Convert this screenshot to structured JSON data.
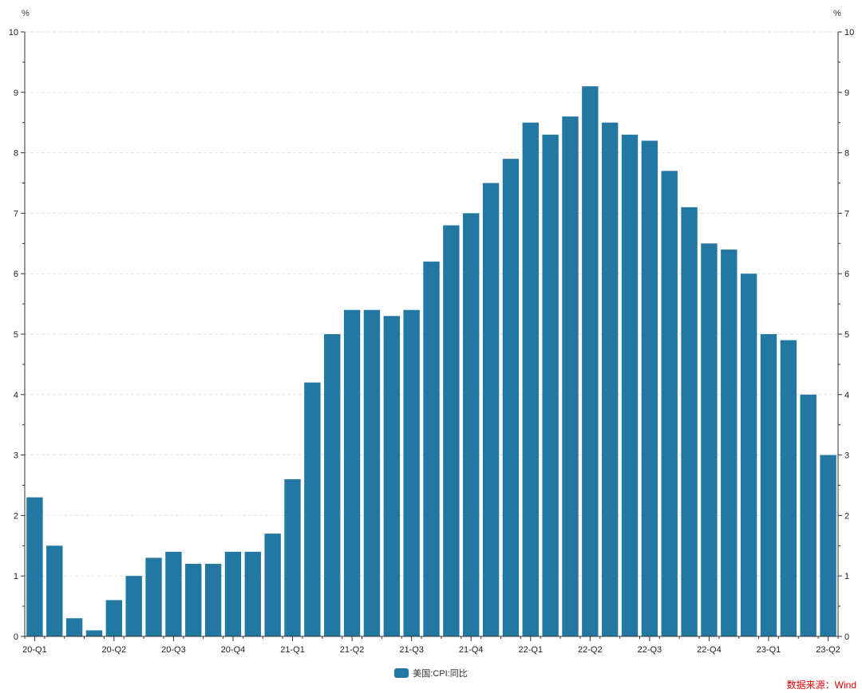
{
  "colors": {
    "bar": "#2277a3",
    "grid": "#e3e3e3",
    "axis": "#333333",
    "source": "#e00000"
  },
  "legend": {
    "label": "美国:CPI:同比"
  },
  "source": {
    "text": "数据来源：Wind"
  },
  "chart_data": {
    "type": "bar",
    "y_unit_left": "%",
    "y_unit_right": "%",
    "ylim": [
      0,
      10
    ],
    "yticks": [
      0,
      1,
      2,
      3,
      4,
      5,
      6,
      7,
      8,
      9,
      10
    ],
    "grid": true,
    "legend_position": "bottom-center",
    "series": [
      {
        "name": "美国:CPI:同比",
        "values": [
          2.3,
          1.5,
          0.3,
          0.1,
          0.6,
          1.0,
          1.3,
          1.4,
          1.2,
          1.2,
          1.4,
          1.4,
          1.7,
          2.6,
          4.2,
          5.0,
          5.4,
          5.4,
          5.3,
          5.4,
          6.2,
          6.8,
          7.0,
          7.5,
          7.9,
          8.5,
          8.3,
          8.6,
          9.1,
          8.5,
          8.3,
          8.2,
          7.7,
          7.1,
          6.5,
          6.4,
          6.0,
          5.0,
          4.9,
          4.0,
          3.0
        ]
      }
    ],
    "x_tick_labels": [
      {
        "index": 0,
        "label": "20-Q1"
      },
      {
        "index": 4,
        "label": "20-Q2"
      },
      {
        "index": 7,
        "label": "20-Q3"
      },
      {
        "index": 10,
        "label": "20-Q4"
      },
      {
        "index": 13,
        "label": "21-Q1"
      },
      {
        "index": 16,
        "label": "21-Q2"
      },
      {
        "index": 19,
        "label": "21-Q3"
      },
      {
        "index": 22,
        "label": "21-Q4"
      },
      {
        "index": 25,
        "label": "22-Q1"
      },
      {
        "index": 28,
        "label": "22-Q2"
      },
      {
        "index": 31,
        "label": "22-Q3"
      },
      {
        "index": 34,
        "label": "22-Q4"
      },
      {
        "index": 37,
        "label": "23-Q1"
      },
      {
        "index": 40,
        "label": "23-Q2"
      }
    ]
  }
}
